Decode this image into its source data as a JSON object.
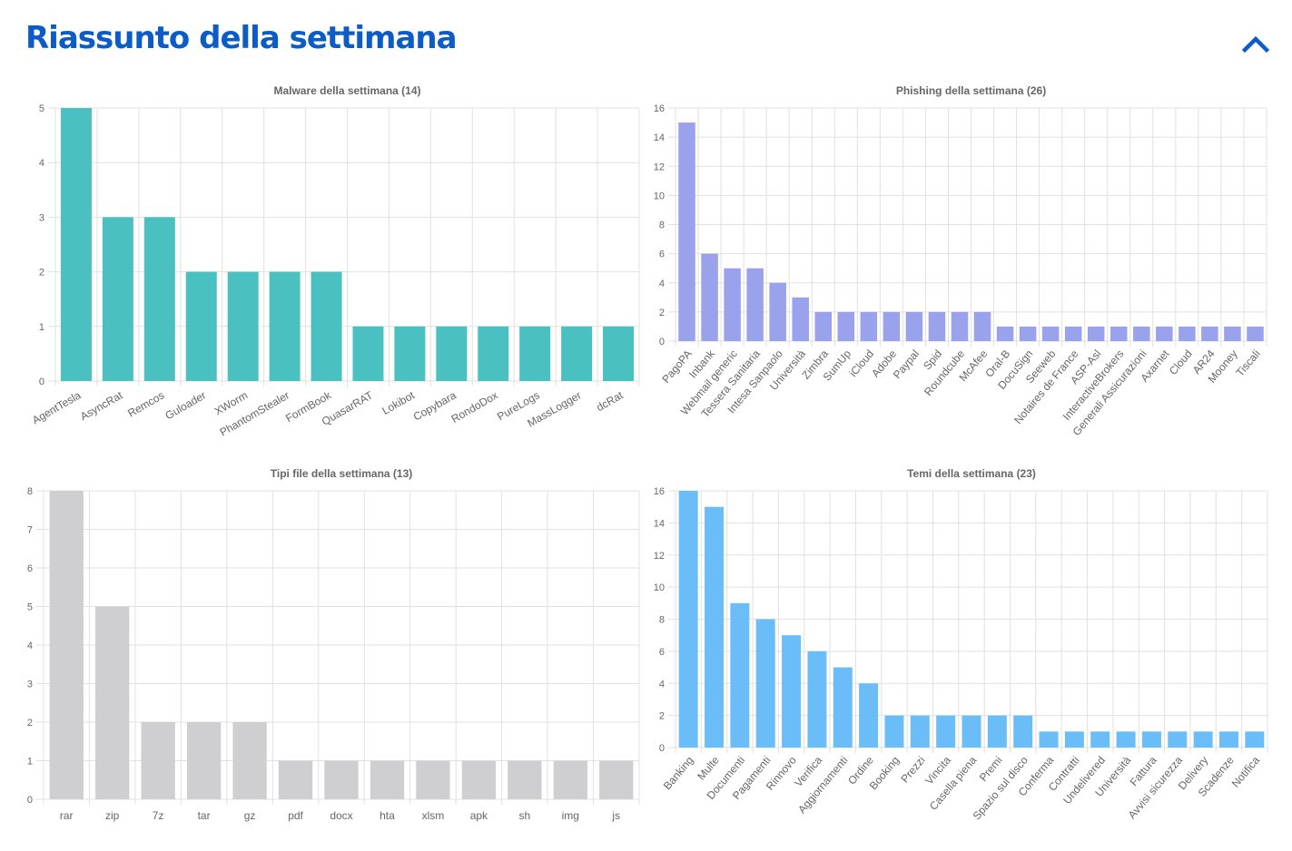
{
  "header": {
    "title": "Riassunto della settimana",
    "collapse_icon": "chevron-up-icon",
    "accent": "#0b5cc7"
  },
  "chart_data": [
    {
      "type": "bar",
      "title": "Malware della settimana (14)",
      "categories": [
        "AgentTesla",
        "AsyncRat",
        "Remcos",
        "Guloader",
        "XWorm",
        "PhantomStealer",
        "FormBook",
        "QuasarRAT",
        "Lokibot",
        "Copybara",
        "RondoDox",
        "PureLogs",
        "MassLogger",
        "dcRat"
      ],
      "values": [
        5,
        3,
        3,
        2,
        2,
        2,
        2,
        1,
        1,
        1,
        1,
        1,
        1,
        1
      ],
      "ylim": [
        0,
        5
      ],
      "yticks": [
        0,
        1,
        2,
        3,
        4,
        5
      ],
      "color": "#4bc0c0",
      "grid": true
    },
    {
      "type": "bar",
      "title": "Phishing della settimana (26)",
      "categories": [
        "PagoPA",
        "Inbank",
        "Webmail generic",
        "Tessera Sanitaria",
        "Intesa Sanpaolo",
        "Università",
        "Zimbra",
        "SumUp",
        "iCloud",
        "Adobe",
        "Paypal",
        "Spid",
        "Roundcube",
        "McAfee",
        "Oral-B",
        "DocuSign",
        "Seeweb",
        "Notaires de France",
        "ASP-Asl",
        "InteractiveBrokers",
        "Generali Assicurazioni",
        "Axarnet",
        "Cloud",
        "AR24",
        "Mooney",
        "Tiscali"
      ],
      "values": [
        15,
        6,
        5,
        5,
        4,
        3,
        2,
        2,
        2,
        2,
        2,
        2,
        2,
        2,
        1,
        1,
        1,
        1,
        1,
        1,
        1,
        1,
        1,
        1,
        1,
        1
      ],
      "ylim": [
        0,
        16
      ],
      "yticks": [
        0,
        2,
        4,
        6,
        8,
        10,
        12,
        14,
        16
      ],
      "color": "#9aa2ec",
      "grid": true
    },
    {
      "type": "bar",
      "title": "Tipi file della settimana (13)",
      "categories": [
        "rar",
        "zip",
        "7z",
        "tar",
        "gz",
        "pdf",
        "docx",
        "hta",
        "xlsm",
        "apk",
        "sh",
        "img",
        "js"
      ],
      "values": [
        8,
        5,
        2,
        2,
        2,
        1,
        1,
        1,
        1,
        1,
        1,
        1,
        1
      ],
      "ylim": [
        0,
        8
      ],
      "yticks": [
        0,
        1,
        2,
        3,
        4,
        5,
        6,
        7,
        8
      ],
      "color": "#cfcfd1",
      "grid": true
    },
    {
      "type": "bar",
      "title": "Temi della settimana (23)",
      "categories": [
        "Banking",
        "Multe",
        "Documenti",
        "Pagamenti",
        "Rinnovo",
        "Verifica",
        "Aggiornamenti",
        "Ordine",
        "Booking",
        "Prezzi",
        "Vincita",
        "Casella piena",
        "Premi",
        "Spazio sul disco",
        "Conferma",
        "Contratti",
        "Undelivered",
        "Università",
        "Fattura",
        "Avvisi sicurezza",
        "Delivery",
        "Scadenze",
        "Notifica"
      ],
      "values": [
        16,
        15,
        9,
        8,
        7,
        6,
        5,
        4,
        2,
        2,
        2,
        2,
        2,
        2,
        1,
        1,
        1,
        1,
        1,
        1,
        1,
        1,
        1
      ],
      "ylim": [
        0,
        16
      ],
      "yticks": [
        0,
        2,
        4,
        6,
        8,
        10,
        12,
        14,
        16
      ],
      "color": "#6bbdf7",
      "grid": true
    }
  ]
}
